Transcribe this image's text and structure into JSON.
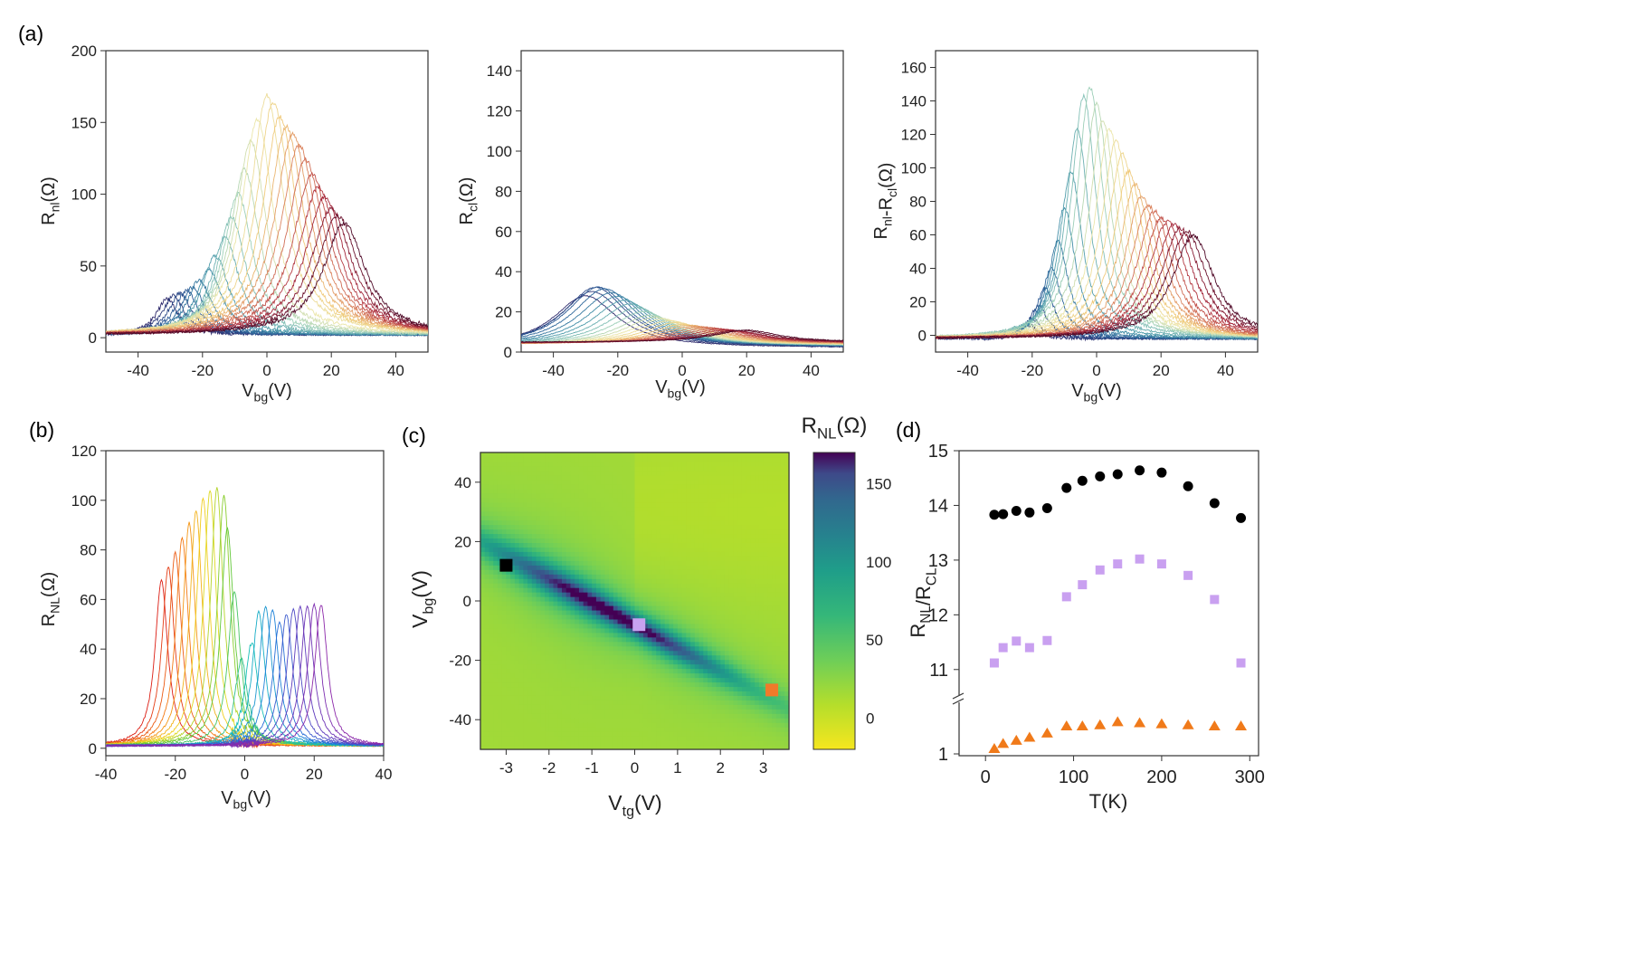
{
  "panel_labels": {
    "a": "(a)",
    "b": "(b)",
    "c": "(c)",
    "d": "(d)"
  },
  "chart_data": [
    {
      "id": "a1",
      "type": "line",
      "title": "",
      "ylabel_main": "R",
      "ylabel_sub": "nl",
      "ylabel_unit": "(Ω)",
      "xlabel_main": "V",
      "xlabel_sub": "bg",
      "xlabel_unit": "(V)",
      "xlim": [
        -50,
        50
      ],
      "ylim": [
        -10,
        200
      ],
      "xticks": [
        -40,
        -20,
        0,
        20,
        40
      ],
      "yticks": [
        0,
        50,
        100,
        150,
        200
      ],
      "n_series": 27,
      "series_peak_positions_V": [
        -31,
        -29,
        -27,
        -25,
        -23,
        -21,
        -18,
        -16,
        -13,
        -11,
        -9,
        -7,
        -5,
        -3,
        0,
        2,
        4,
        6,
        8,
        10,
        12,
        14,
        16,
        18,
        20,
        22,
        24
      ],
      "series_peak_values_Ohm": [
        25,
        27,
        29,
        31,
        33,
        38,
        45,
        55,
        68,
        82,
        98,
        115,
        135,
        150,
        167,
        162,
        152,
        145,
        140,
        132,
        122,
        112,
        103,
        96,
        88,
        83,
        78
      ],
      "colormap": "Spectral (cool to warm, reversed from 1st to last)"
    },
    {
      "id": "a2",
      "type": "line",
      "ylabel_main": "R",
      "ylabel_sub": "cl",
      "ylabel_unit": "(Ω)",
      "xlabel_main": "V",
      "xlabel_sub": "bg",
      "xlabel_unit": "(V)",
      "xlim": [
        -50,
        50
      ],
      "ylim": [
        0,
        150
      ],
      "xticks": [
        -40,
        -20,
        0,
        20,
        40
      ],
      "yticks": [
        0,
        20,
        40,
        60,
        80,
        100,
        120,
        140
      ],
      "n_series": 27,
      "series_peak_positions_V": [
        -30,
        -28,
        -27,
        -26,
        -24,
        -22,
        -20,
        -18,
        -16,
        -14,
        -12,
        -10,
        -8,
        -6,
        -4,
        -2,
        0,
        2,
        4,
        6,
        8,
        10,
        12,
        14,
        16,
        18,
        20
      ],
      "series_peak_values_Ohm": [
        26,
        28,
        30,
        30,
        29,
        27,
        25,
        23,
        21,
        19,
        17,
        15,
        14,
        13,
        12,
        11,
        10,
        9.5,
        9,
        8.5,
        8,
        7.5,
        7,
        6.5,
        6,
        6,
        6
      ]
    },
    {
      "id": "a3",
      "type": "line",
      "ylabel_main": "R",
      "ylabel_sub": "nl",
      "ylabel_mid": "-R",
      "ylabel_sub2": "cl",
      "ylabel_unit": "(Ω)",
      "xlabel_main": "V",
      "xlabel_sub": "bg",
      "xlabel_unit": "(V)",
      "xlim": [
        -50,
        50
      ],
      "ylim": [
        -10,
        170
      ],
      "xticks": [
        -40,
        -20,
        0,
        20,
        40
      ],
      "yticks": [
        0,
        20,
        40,
        60,
        80,
        100,
        120,
        140,
        160
      ],
      "n_series": 27,
      "series_peak_positions_V": [
        -21,
        -20,
        -18,
        -16,
        -14,
        -12,
        -10,
        -8,
        -6,
        -4,
        -2,
        0,
        2,
        4,
        6,
        8,
        10,
        12,
        14,
        16,
        18,
        20,
        22,
        24,
        26,
        28,
        30
      ],
      "series_peak_values_Ohm": [
        8,
        12,
        20,
        30,
        42,
        58,
        78,
        100,
        125,
        145,
        150,
        140,
        130,
        125,
        118,
        110,
        100,
        92,
        85,
        80,
        76,
        72,
        70,
        68,
        66,
        64,
        62
      ]
    },
    {
      "id": "b",
      "type": "line",
      "ylabel_main": "R",
      "ylabel_sub": "NL",
      "ylabel_unit": "(Ω)",
      "xlabel_main": "V",
      "xlabel_sub": "bg",
      "xlabel_unit": "(V)",
      "xlim": [
        -40,
        40
      ],
      "ylim": [
        -3,
        120
      ],
      "xticks": [
        -40,
        -20,
        0,
        20,
        40
      ],
      "yticks": [
        0,
        20,
        40,
        60,
        80,
        100,
        120
      ],
      "series_peak_positions_V": [
        -24,
        -22,
        -20,
        -18,
        -16,
        -14,
        -12,
        -10,
        -8,
        -6,
        -5,
        -3,
        -1,
        2,
        4,
        6,
        8,
        10,
        12,
        14,
        16,
        18,
        20,
        22
      ],
      "series_peak_values_Ohm": [
        67,
        72,
        78,
        84,
        90,
        95,
        100,
        103,
        104,
        101,
        88,
        62,
        35,
        42,
        54,
        56,
        55,
        50,
        53,
        55,
        56,
        56,
        57,
        57
      ],
      "colormap": "rainbow red to purple"
    },
    {
      "id": "c",
      "type": "heatmap",
      "xlabel_main": "V",
      "xlabel_sub": "tg",
      "xlabel_unit": "(V)",
      "ylabel_main": "V",
      "ylabel_sub": "bg",
      "ylabel_unit": "(V)",
      "xlim": [
        -3.6,
        3.6
      ],
      "ylim": [
        -50,
        50
      ],
      "xticks": [
        -3,
        -2,
        -1,
        0,
        1,
        2,
        3
      ],
      "yticks": [
        -40,
        -20,
        0,
        20,
        40
      ],
      "colorbar_title_main": "R",
      "colorbar_title_sub": "NL",
      "colorbar_title_unit": "(Ω)",
      "colorbar_range": [
        -20,
        170
      ],
      "colorbar_ticks": [
        0,
        50,
        100,
        150
      ],
      "colormap": "viridis reversed",
      "ridge": {
        "v_tg_start": -3.6,
        "v_bg_start": 20,
        "v_tg_end": 3.6,
        "v_bg_end": -36,
        "peak_value": 165
      },
      "markers": [
        {
          "name": "black",
          "color": "#000000",
          "v_tg": -3.0,
          "v_bg": 12
        },
        {
          "name": "lavender",
          "color": "#c8a2f0",
          "v_tg": 0.1,
          "v_bg": -8
        },
        {
          "name": "orange",
          "color": "#f07a2a",
          "v_tg": 3.2,
          "v_bg": -30
        }
      ]
    },
    {
      "id": "d",
      "type": "scatter",
      "xlabel": "T(K)",
      "ylabel_main": "R",
      "ylabel_sub": "NL",
      "ylabel_mid": "/R",
      "ylabel_sub2": "CL",
      "xlim": [
        -30,
        310
      ],
      "xticks": [
        0,
        100,
        200,
        300
      ],
      "ylim_upper": [
        10.5,
        15
      ],
      "yticks_upper": [
        11,
        12,
        13,
        14,
        15
      ],
      "ylim_lower": [
        1,
        1.5
      ],
      "yticks_lower": [
        1
      ],
      "axis_break": true,
      "series": [
        {
          "name": "black",
          "color": "#000000",
          "marker": "circle",
          "x": [
            10,
            20,
            35,
            50,
            70,
            92,
            110,
            130,
            150,
            175,
            200,
            230,
            260,
            290
          ],
          "y": [
            13.83,
            13.84,
            13.9,
            13.87,
            13.95,
            14.32,
            14.45,
            14.53,
            14.57,
            14.64,
            14.6,
            14.35,
            14.04,
            13.77
          ]
        },
        {
          "name": "lavender",
          "color": "#c9a0f0",
          "marker": "square",
          "x": [
            10,
            20,
            35,
            50,
            70,
            92,
            110,
            130,
            150,
            175,
            200,
            230,
            260,
            290
          ],
          "y": [
            11.12,
            11.4,
            11.52,
            11.4,
            11.53,
            12.33,
            12.55,
            12.82,
            12.93,
            13.02,
            12.93,
            12.72,
            12.28,
            11.12
          ]
        },
        {
          "name": "orange",
          "color": "#f07a1a",
          "marker": "triangle",
          "x": [
            10,
            20,
            35,
            50,
            70,
            92,
            110,
            130,
            150,
            175,
            200,
            230,
            260,
            290
          ],
          "y": [
            1.07,
            1.12,
            1.15,
            1.18,
            1.22,
            1.29,
            1.29,
            1.3,
            1.33,
            1.32,
            1.31,
            1.3,
            1.29,
            1.29
          ]
        }
      ]
    }
  ]
}
